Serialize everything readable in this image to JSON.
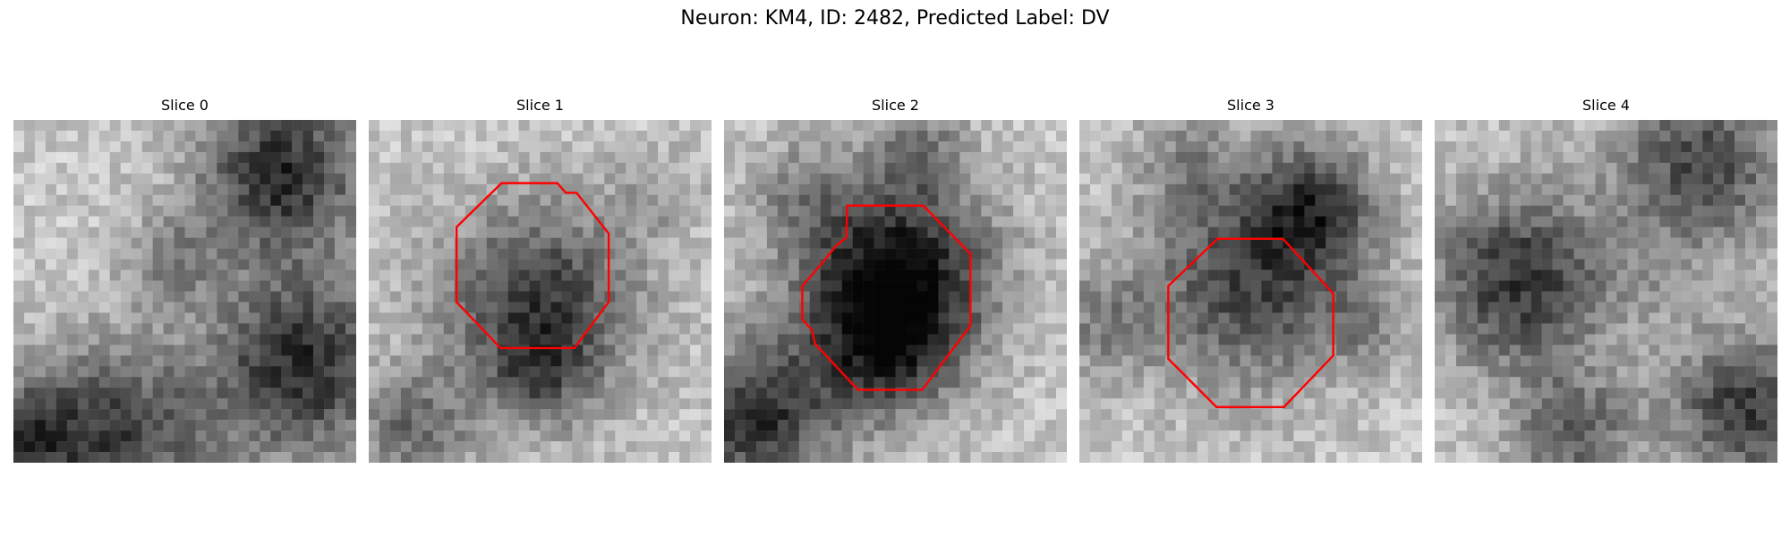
{
  "figure": {
    "title": "Neuron: KM4, ID: 2482, Predicted Label: DV"
  },
  "panels": [
    {
      "title": "Slice 0"
    },
    {
      "title": "Slice 1"
    },
    {
      "title": "Slice 2"
    },
    {
      "title": "Slice 3"
    },
    {
      "title": "Slice 4"
    }
  ],
  "contour_color": "#ff0000",
  "image_style": {
    "colormap": "grayscale",
    "grid": "pixelated 32x32"
  }
}
